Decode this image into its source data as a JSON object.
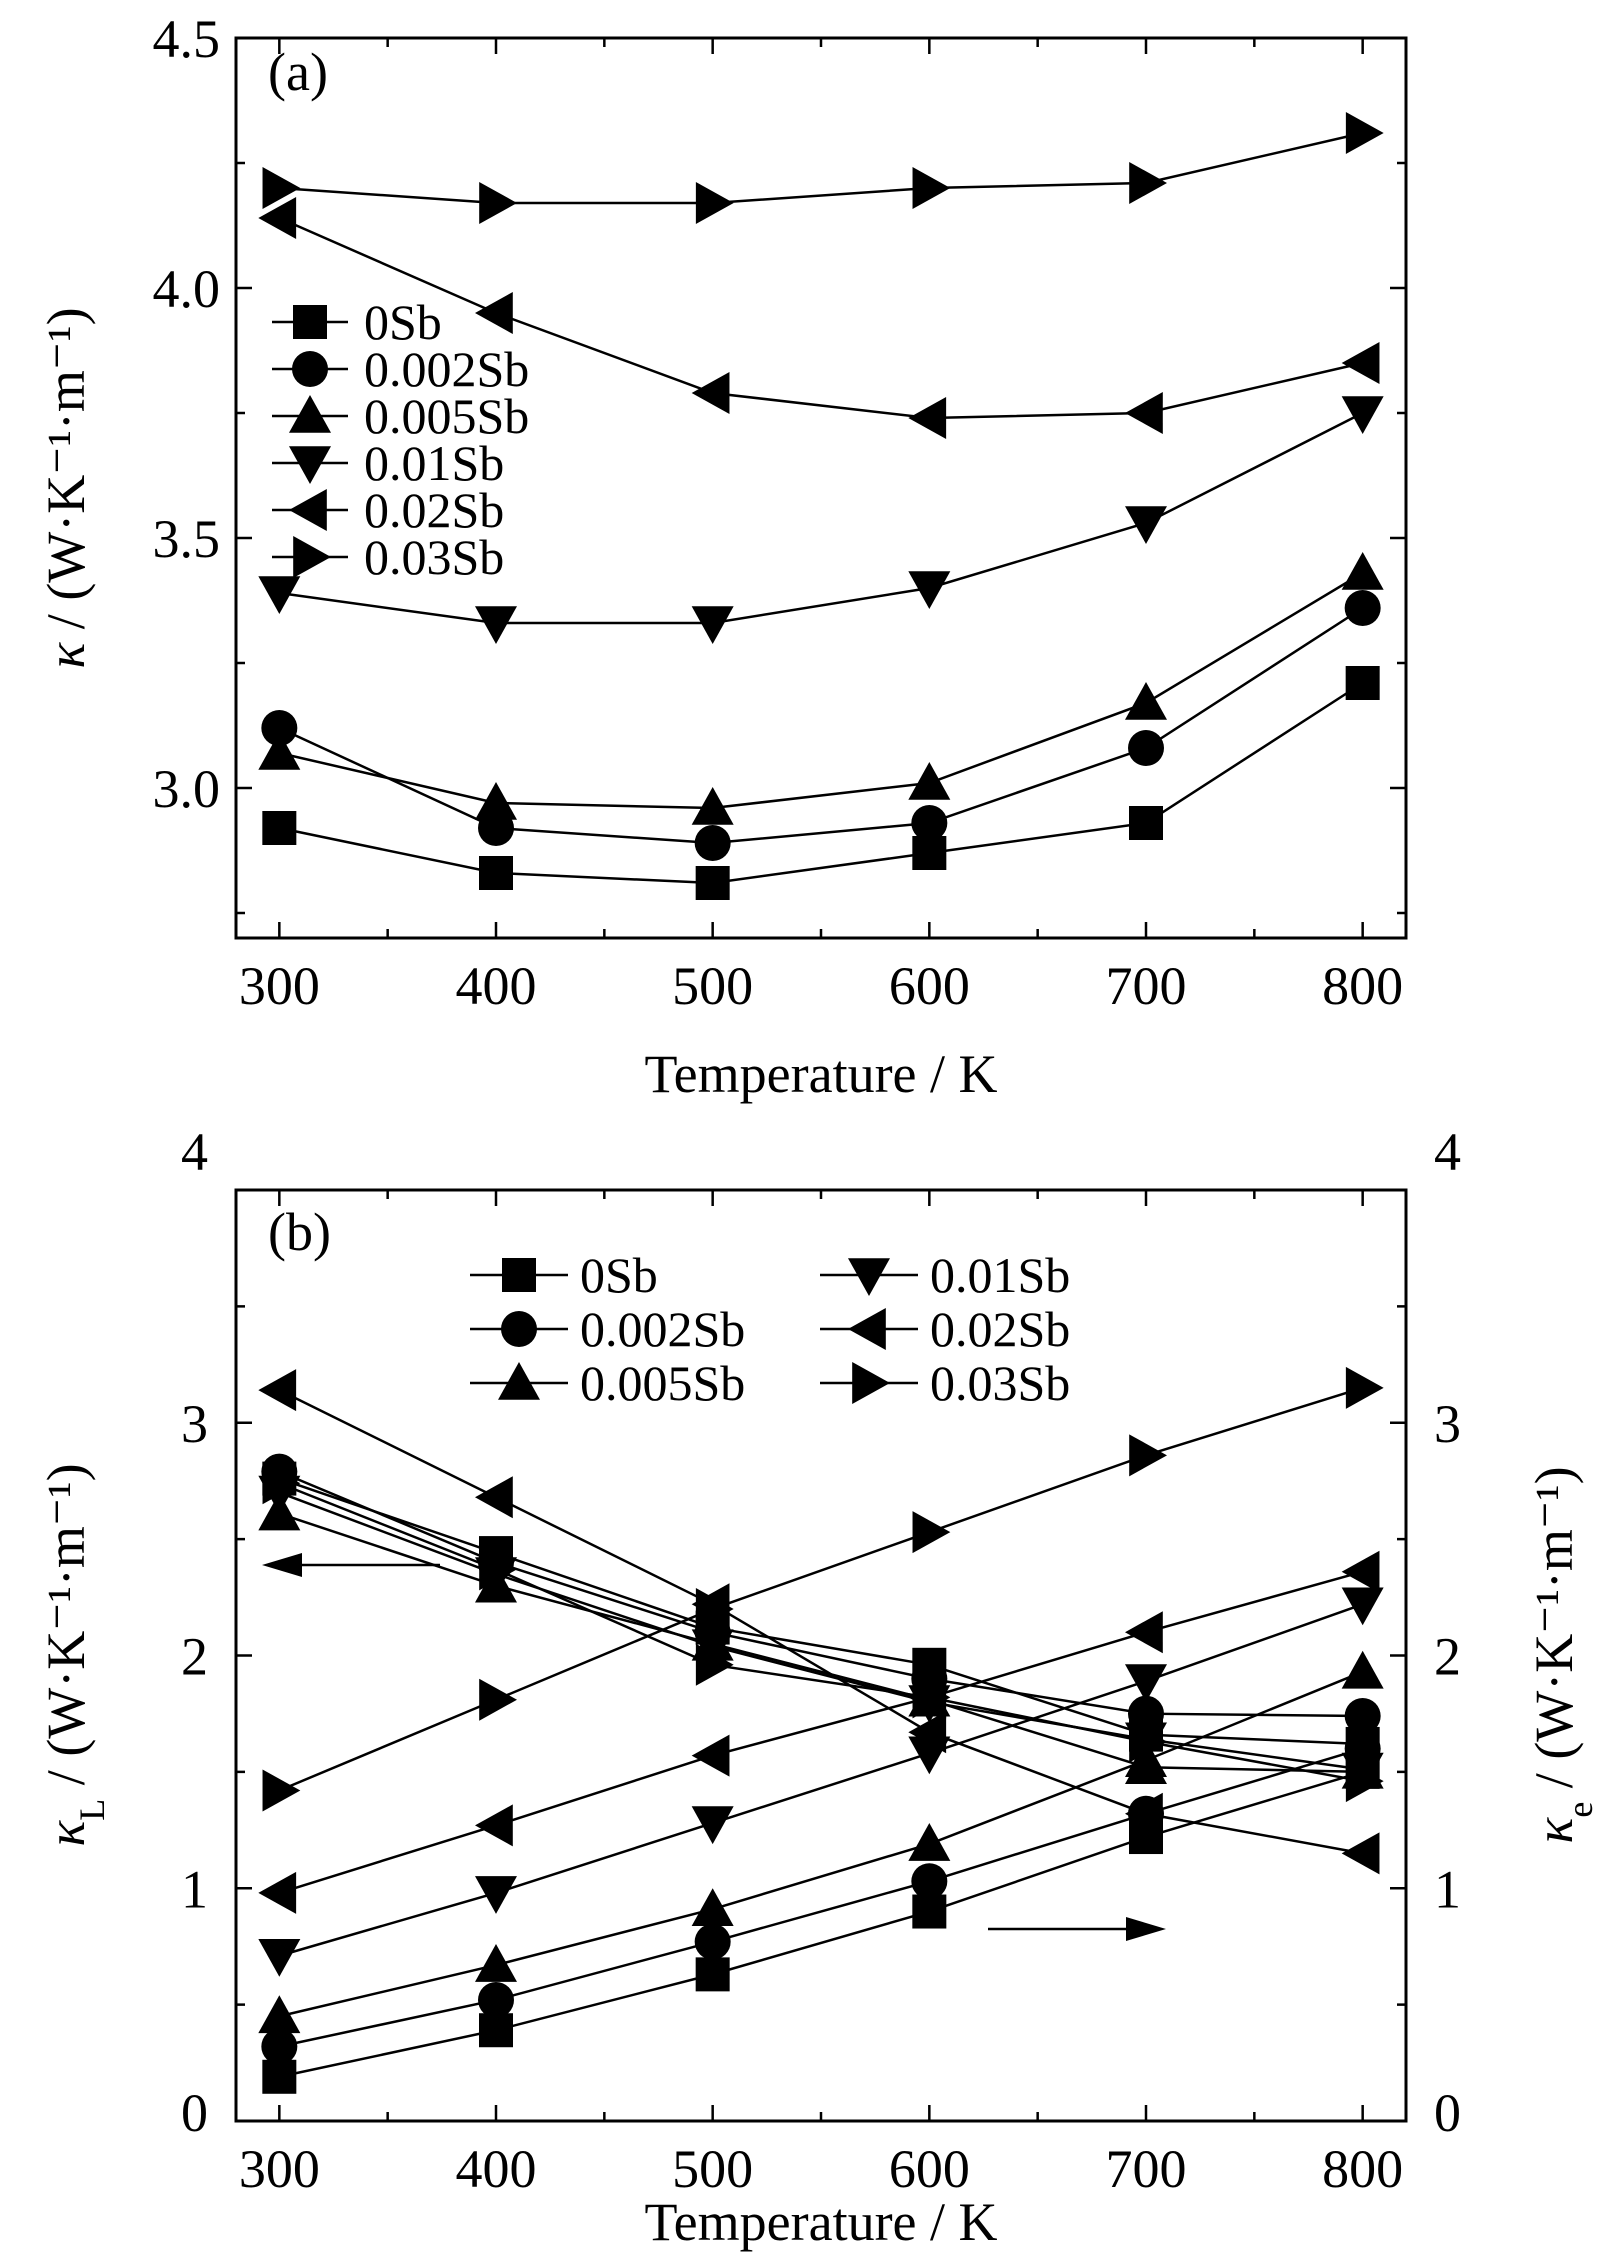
{
  "chart_data": [
    {
      "panel": "(a)",
      "type": "line",
      "xlabel": "Temperature / K",
      "ylabel_symbol": "κ",
      "ylabel_unit": " / (W·K⁻¹·m⁻¹)",
      "xlim": [
        280,
        820
      ],
      "ylim": [
        2.7,
        4.5
      ],
      "xticks": [
        300,
        400,
        500,
        600,
        700,
        800
      ],
      "yticks": [
        "3.0",
        "3.5",
        "4.0",
        "4.5"
      ],
      "legend_position": "upper-left",
      "x": [
        300,
        400,
        500,
        600,
        700,
        800
      ],
      "series": [
        {
          "name": "0Sb",
          "marker": "square",
          "values": [
            2.92,
            2.83,
            2.81,
            2.87,
            2.93,
            3.21
          ]
        },
        {
          "name": "0.002Sb",
          "marker": "circle",
          "values": [
            3.12,
            2.92,
            2.89,
            2.93,
            3.08,
            3.36
          ]
        },
        {
          "name": "0.005Sb",
          "marker": "triangle-up",
          "values": [
            3.07,
            2.97,
            2.96,
            3.01,
            3.17,
            3.43
          ]
        },
        {
          "name": "0.01Sb",
          "marker": "triangle-down",
          "values": [
            3.39,
            3.33,
            3.33,
            3.4,
            3.53,
            3.75
          ]
        },
        {
          "name": "0.02Sb",
          "marker": "triangle-left",
          "values": [
            4.14,
            3.95,
            3.79,
            3.74,
            3.75,
            3.85
          ]
        },
        {
          "name": "0.03Sb",
          "marker": "triangle-right",
          "values": [
            4.2,
            4.17,
            4.17,
            4.2,
            4.21,
            4.31
          ]
        }
      ]
    },
    {
      "panel": "(b)",
      "type": "line",
      "xlabel": "Temperature / K",
      "ylabel_left_symbol": "κ",
      "ylabel_left_sub": "L",
      "ylabel_right_symbol": "κ",
      "ylabel_right_sub": "e",
      "ylabel_unit": " / (W·K⁻¹·m⁻¹)",
      "xlim": [
        280,
        820
      ],
      "ylim": [
        0,
        4
      ],
      "xticks": [
        300,
        400,
        500,
        600,
        700,
        800
      ],
      "yticks": [
        "0",
        "1",
        "2",
        "3",
        "4"
      ],
      "legend_position": "top-center",
      "arrows": [
        {
          "direction": "left",
          "refers_to": "left axis (κL)"
        },
        {
          "direction": "right",
          "refers_to": "right axis (κe)"
        }
      ],
      "x": [
        300,
        400,
        500,
        600,
        700,
        800
      ],
      "series": [
        {
          "name": "0Sb",
          "marker": "square",
          "kappa_L": [
            2.76,
            2.44,
            2.12,
            1.96,
            1.66,
            1.62
          ],
          "kappa_e": [
            0.19,
            0.39,
            0.63,
            0.9,
            1.22,
            1.5
          ]
        },
        {
          "name": "0.002Sb",
          "marker": "circle",
          "kappa_L": [
            2.79,
            2.4,
            2.1,
            1.9,
            1.75,
            1.74
          ],
          "kappa_e": [
            0.32,
            0.52,
            0.77,
            1.03,
            1.32,
            1.6
          ]
        },
        {
          "name": "0.005Sb",
          "marker": "triangle-up",
          "kappa_L": [
            2.61,
            2.3,
            2.05,
            1.81,
            1.52,
            1.5
          ],
          "kappa_e": [
            0.45,
            0.67,
            0.91,
            1.19,
            1.55,
            1.93
          ]
        },
        {
          "name": "0.01Sb",
          "marker": "triangle-down",
          "kappa_L": [
            2.7,
            2.35,
            2.04,
            1.8,
            1.64,
            1.51
          ],
          "kappa_e": [
            0.71,
            0.98,
            1.28,
            1.58,
            1.89,
            2.22
          ]
        },
        {
          "name": "0.02Sb",
          "marker": "triangle-left",
          "kappa_L": [
            3.14,
            2.68,
            2.22,
            1.67,
            1.32,
            1.15
          ],
          "kappa_e": [
            0.98,
            1.27,
            1.57,
            1.82,
            2.1,
            2.36
          ]
        },
        {
          "name": "0.03Sb",
          "marker": "triangle-right",
          "kappa_L": [
            2.74,
            2.37,
            1.96,
            1.82,
            1.63,
            1.46
          ],
          "kappa_e": [
            1.42,
            1.81,
            2.2,
            2.53,
            2.86,
            3.15
          ]
        }
      ]
    }
  ]
}
